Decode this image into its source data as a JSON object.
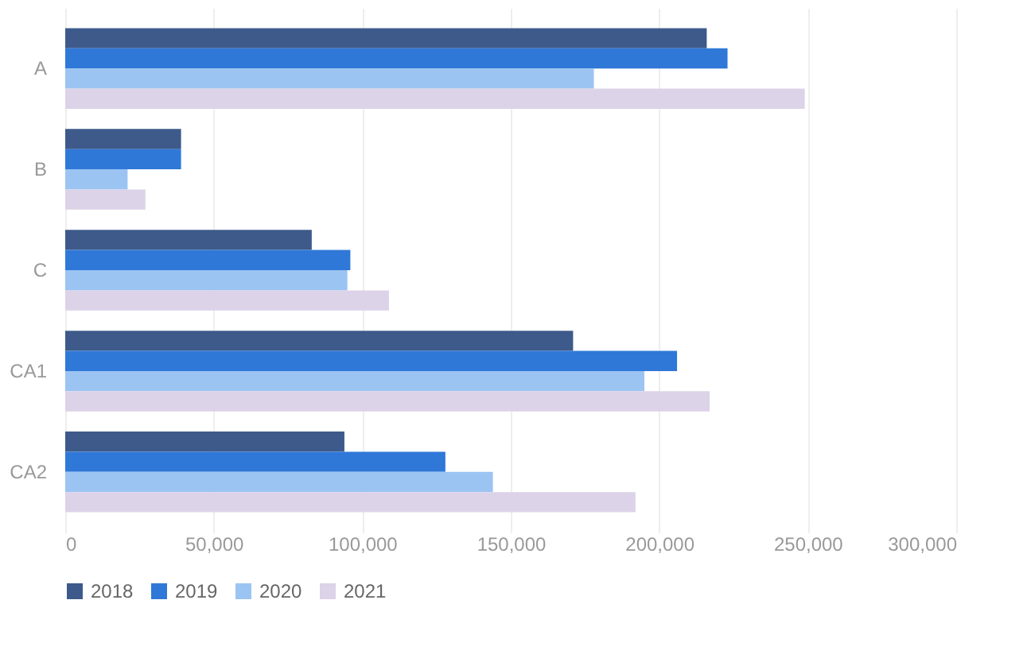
{
  "chart_data": {
    "type": "bar",
    "orientation": "horizontal",
    "categories": [
      "A",
      "B",
      "C",
      "CA1",
      "CA2"
    ],
    "series": [
      {
        "name": "2018",
        "color": "#3d5a8a",
        "values": [
          216000,
          39000,
          83000,
          171000,
          94000
        ]
      },
      {
        "name": "2019",
        "color": "#2f78d8",
        "values": [
          223000,
          39000,
          96000,
          206000,
          128000
        ]
      },
      {
        "name": "2020",
        "color": "#9cc4f2",
        "values": [
          178000,
          21000,
          95000,
          195000,
          144000
        ]
      },
      {
        "name": "2021",
        "color": "#dcd3e8",
        "values": [
          249000,
          27000,
          109000,
          217000,
          192000
        ]
      }
    ],
    "xlim": [
      0,
      300000
    ],
    "xticks": [
      0,
      {
        "value": 50000,
        "label": "50,000"
      },
      {
        "value": 100000,
        "label": "100,000"
      },
      {
        "value": 150000,
        "label": "150,000"
      },
      {
        "value": 200000,
        "label": "200,000"
      },
      {
        "value": 250000,
        "label": "250,000"
      },
      {
        "value": 300000,
        "label": "300,000"
      }
    ],
    "grid": "x",
    "legend": "bottom"
  }
}
